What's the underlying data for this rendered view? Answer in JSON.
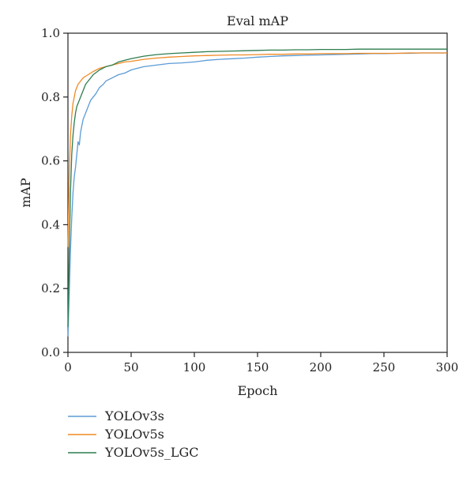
{
  "chart_data": {
    "type": "line",
    "title": "Eval mAP",
    "xlabel": "Epoch",
    "ylabel": "mAP",
    "xlim": [
      0,
      300
    ],
    "ylim": [
      0,
      1.0
    ],
    "xticks": [
      "0",
      "50",
      "100",
      "150",
      "200",
      "250",
      "300"
    ],
    "yticks": [
      "0.0",
      "0.2",
      "0.4",
      "0.6",
      "0.8",
      "1.0"
    ],
    "grid": false,
    "legend_position": "bottom-left",
    "series": [
      {
        "name": "YOLOv3s",
        "color": "#5b9bd5",
        "x": [
          0,
          1,
          2,
          3,
          4,
          5,
          6,
          7,
          8,
          9,
          10,
          12,
          14,
          16,
          18,
          20,
          22,
          25,
          28,
          30,
          35,
          40,
          45,
          50,
          55,
          60,
          70,
          80,
          90,
          100,
          110,
          120,
          130,
          140,
          150,
          160,
          170,
          180,
          190,
          200,
          210,
          220,
          230,
          240,
          250,
          260,
          270,
          280,
          290,
          300
        ],
        "y": [
          0.05,
          0.18,
          0.32,
          0.42,
          0.5,
          0.55,
          0.58,
          0.62,
          0.66,
          0.65,
          0.69,
          0.73,
          0.75,
          0.77,
          0.79,
          0.8,
          0.81,
          0.83,
          0.84,
          0.85,
          0.86,
          0.87,
          0.875,
          0.885,
          0.89,
          0.895,
          0.9,
          0.905,
          0.907,
          0.91,
          0.915,
          0.918,
          0.92,
          0.922,
          0.925,
          0.927,
          0.929,
          0.93,
          0.931,
          0.932,
          0.933,
          0.934,
          0.935,
          0.936,
          0.936,
          0.937,
          0.937,
          0.938,
          0.938,
          0.938
        ]
      },
      {
        "name": "YOLOv5s",
        "color": "#f08a24",
        "x": [
          0,
          1,
          2,
          3,
          4,
          5,
          6,
          7,
          8,
          10,
          12,
          14,
          16,
          18,
          20,
          25,
          30,
          35,
          40,
          45,
          50,
          60,
          70,
          80,
          90,
          100,
          110,
          120,
          130,
          140,
          150,
          160,
          170,
          180,
          190,
          200,
          210,
          220,
          230,
          240,
          250,
          260,
          270,
          280,
          290,
          300
        ],
        "y": [
          0.33,
          0.55,
          0.68,
          0.74,
          0.78,
          0.8,
          0.82,
          0.83,
          0.84,
          0.85,
          0.86,
          0.865,
          0.87,
          0.875,
          0.88,
          0.89,
          0.895,
          0.9,
          0.905,
          0.91,
          0.912,
          0.918,
          0.922,
          0.925,
          0.927,
          0.929,
          0.93,
          0.931,
          0.932,
          0.932,
          0.933,
          0.934,
          0.934,
          0.935,
          0.935,
          0.936,
          0.936,
          0.936,
          0.937,
          0.937,
          0.937,
          0.937,
          0.938,
          0.938,
          0.938,
          0.938
        ]
      },
      {
        "name": "YOLOv5s_LGC",
        "color": "#2e7d4f",
        "x": [
          0,
          1,
          2,
          3,
          4,
          5,
          6,
          7,
          8,
          10,
          12,
          14,
          16,
          18,
          20,
          25,
          30,
          35,
          40,
          45,
          50,
          60,
          70,
          80,
          90,
          100,
          110,
          120,
          130,
          140,
          150,
          160,
          170,
          180,
          190,
          200,
          210,
          220,
          230,
          240,
          250,
          260,
          270,
          280,
          290,
          300
        ],
        "y": [
          0.08,
          0.3,
          0.5,
          0.62,
          0.68,
          0.72,
          0.75,
          0.77,
          0.78,
          0.8,
          0.82,
          0.84,
          0.85,
          0.86,
          0.87,
          0.885,
          0.895,
          0.9,
          0.91,
          0.915,
          0.92,
          0.928,
          0.933,
          0.936,
          0.938,
          0.94,
          0.942,
          0.943,
          0.944,
          0.945,
          0.946,
          0.947,
          0.947,
          0.948,
          0.948,
          0.949,
          0.949,
          0.949,
          0.95,
          0.95,
          0.95,
          0.95,
          0.95,
          0.95,
          0.95,
          0.95
        ]
      }
    ]
  }
}
